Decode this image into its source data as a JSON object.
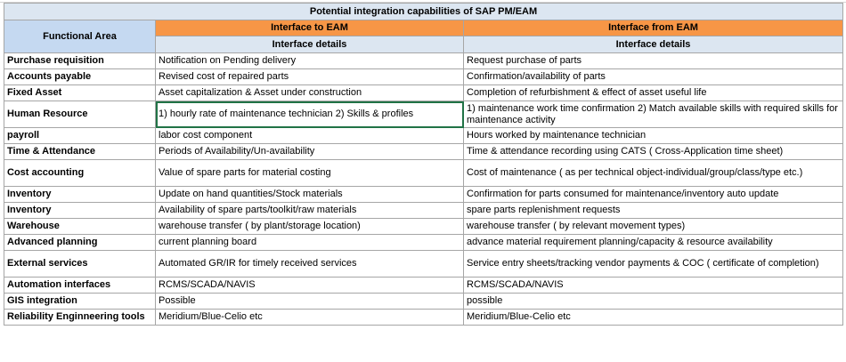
{
  "sheet": {
    "title": "Potential integration capabilities of SAP PM/EAM",
    "functional_area_header": "Functional Area",
    "interface_to_header": "Interface to EAM",
    "interface_from_header": "Interface from EAM",
    "details_to": "Interface details",
    "details_from": "Interface details",
    "colors": {
      "title_fill": "#dce6f1",
      "orange_fill": "#f79646",
      "selection_border": "#217346"
    },
    "rows": [
      {
        "area": "Purchase requisition",
        "to": "Notification on Pending delivery",
        "from": "Request purchase of parts"
      },
      {
        "area": "Accounts payable",
        "to": "Revised cost of repaired parts",
        "from": "Confirmation/availability of parts"
      },
      {
        "area": "Fixed Asset",
        "to": "Asset capitalization & Asset under construction",
        "from": "Completion of refurbishment & effect of asset useful life"
      },
      {
        "area": "Human Resource",
        "to": "1) hourly rate of maintenance technician 2) Skills & profiles",
        "from": "1) maintenance work time confirmation 2) Match available skills with required skills for maintenance activity"
      },
      {
        "area": "payroll",
        "to": "labor cost component",
        "from": "Hours worked by maintenance technician"
      },
      {
        "area": "Time & Attendance",
        "to": "Periods of Availability/Un-availability",
        "from": "Time & attendance recording using CATS ( Cross-Application time sheet)"
      },
      {
        "area": "Cost accounting",
        "to": "Value of spare parts for material costing",
        "from": "Cost of maintenance ( as per technical object-individual/group/class/type etc.)"
      },
      {
        "area": "Inventory",
        "to": "Update on hand quantities/Stock materials",
        "from": "Confirmation for parts consumed for maintenance/inventory auto update"
      },
      {
        "area": "Inventory",
        "to": "Availability of spare parts/toolkit/raw materials",
        "from": "spare parts replenishment requests"
      },
      {
        "area": "Warehouse",
        "to": "warehouse transfer ( by plant/storage location)",
        "from": "warehouse transfer ( by relevant movement types)"
      },
      {
        "area": "Advanced planning",
        "to": "current planning board",
        "from": "advance material requirement planning/capacity & resource availability"
      },
      {
        "area": "External services",
        "to": "Automated GR/IR for timely received services",
        "from": "Service entry sheets/tracking vendor payments & COC ( certificate of completion)"
      },
      {
        "area": "Automation interfaces",
        "to": "RCMS/SCADA/NAVIS",
        "from": "RCMS/SCADA/NAVIS"
      },
      {
        "area": "GIS integration",
        "to": "Possible",
        "from": "possible"
      },
      {
        "area": "Reliability Enginneering tools",
        "to": "Meridium/Blue-Celio etc",
        "from": "Meridium/Blue-Celio etc"
      }
    ]
  }
}
